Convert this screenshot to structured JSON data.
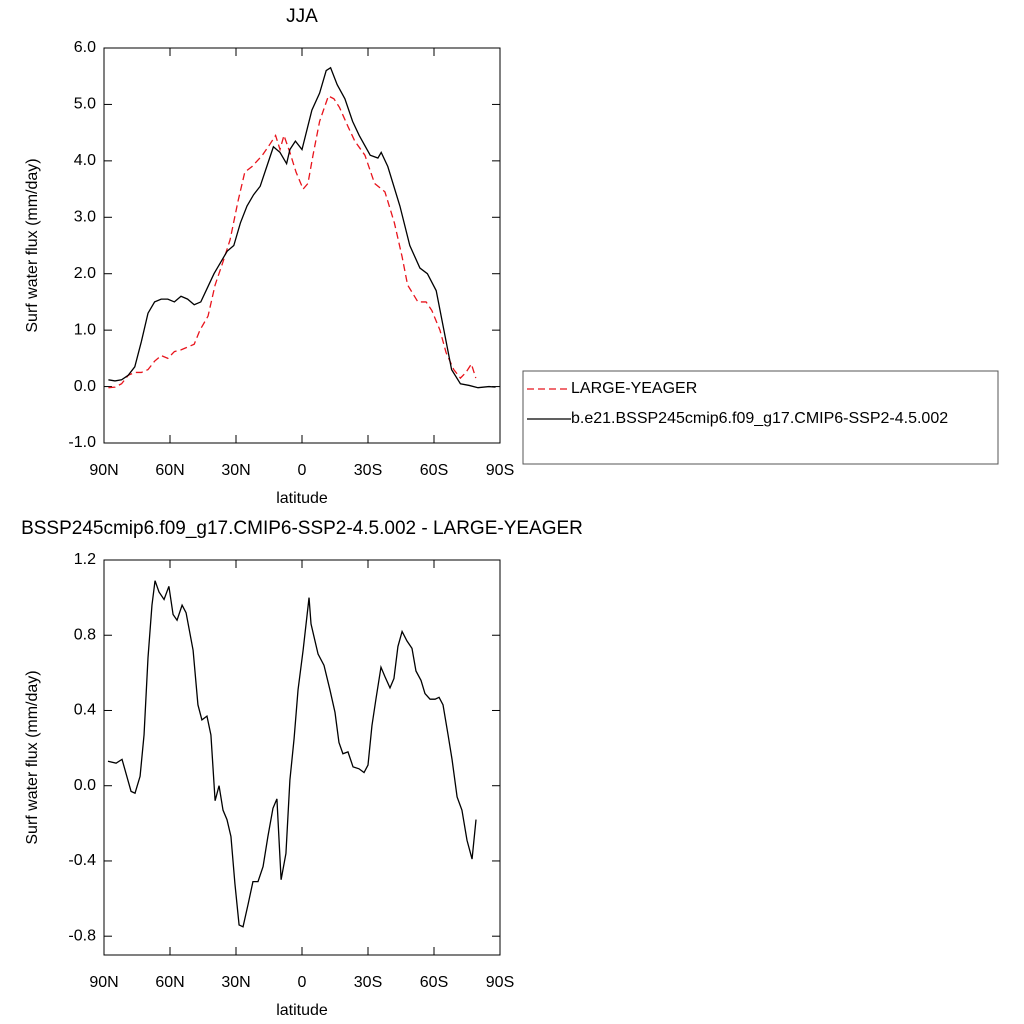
{
  "chart_data": [
    {
      "type": "line",
      "title": "JJA",
      "xlabel": "latitude",
      "ylabel": "Surf water flux (mm/day)",
      "xlim": [
        90,
        -90
      ],
      "ylim": [
        -1,
        6
      ],
      "xticks": [
        {
          "value": 90,
          "label": "90N"
        },
        {
          "value": 60,
          "label": "60N"
        },
        {
          "value": 30,
          "label": "30N"
        },
        0,
        {
          "value": -30,
          "label": "30S"
        },
        {
          "value": -60,
          "label": "60S"
        },
        {
          "value": -90,
          "label": "90S"
        }
      ],
      "yticks": [
        {
          "value": 6,
          "label": "6.0"
        },
        {
          "value": 5,
          "label": "5.0"
        },
        {
          "value": 4,
          "label": "4.0"
        },
        {
          "value": 3,
          "label": "3.0"
        },
        {
          "value": 2,
          "label": "2.0"
        },
        {
          "value": 1,
          "label": "1.0"
        },
        {
          "value": 0,
          "label": "0.0"
        },
        {
          "value": -1,
          "label": "-1.0"
        }
      ],
      "legend": "right",
      "series": [
        {
          "name": "LARGE-YEAGER",
          "color": "#e8141c",
          "linestyle": "dashed",
          "x": [
            88,
            85,
            82,
            79,
            76,
            73,
            70,
            67,
            64,
            61,
            58,
            55,
            52,
            49,
            46.4,
            42.7,
            39.5,
            36,
            32.7,
            29,
            26,
            22.7,
            18,
            14.5,
            12,
            10,
            8.2,
            5.5,
            2.7,
            -0.5,
            -2.7,
            -5,
            -8,
            -12,
            -14.5,
            -17,
            -21,
            -24,
            -28.6,
            -33,
            -37.7,
            -42,
            -45.5,
            -48,
            -52.7,
            -56.4,
            -59,
            -62.7,
            -65.5,
            -69,
            -72,
            -74.5,
            -77,
            -79
          ],
          "values": [
            -0.02,
            -0.01,
            0.05,
            0.2,
            0.25,
            0.25,
            0.3,
            0.45,
            0.55,
            0.5,
            0.62,
            0.65,
            0.7,
            0.75,
            1.0,
            1.25,
            1.8,
            2.2,
            2.6,
            3.3,
            3.8,
            3.9,
            4.1,
            4.3,
            4.45,
            4.2,
            4.45,
            4.15,
            3.8,
            3.5,
            3.6,
            4.1,
            4.7,
            5.15,
            5.1,
            4.95,
            4.6,
            4.35,
            4.1,
            3.6,
            3.45,
            2.9,
            2.3,
            1.8,
            1.5,
            1.5,
            1.35,
            1.0,
            0.6,
            0.3,
            0.15,
            0.25,
            0.4,
            0.15
          ]
        },
        {
          "name": "b.e21.BSSP245cmip6.f09_g17.CMIP6-SSP2-4.5.002",
          "color": "#000000",
          "linestyle": "solid",
          "x": [
            88,
            85,
            82,
            79,
            76,
            73,
            70,
            67,
            64,
            61,
            58,
            55,
            52,
            49,
            46,
            43,
            40,
            37,
            34,
            31,
            28,
            25,
            22,
            19,
            16,
            13,
            10,
            7,
            5.5,
            3,
            0,
            -4.5,
            -8,
            -11,
            -13,
            -16,
            -19.5,
            -23,
            -26,
            -31,
            -34.5,
            -36,
            -39,
            -44.5,
            -49,
            -53.6,
            -57,
            -61,
            -64.5,
            -68,
            -72,
            -76,
            -80,
            -85,
            -88
          ],
          "values": [
            0.12,
            0.1,
            0.12,
            0.2,
            0.35,
            0.8,
            1.3,
            1.5,
            1.55,
            1.55,
            1.5,
            1.6,
            1.55,
            1.45,
            1.5,
            1.75,
            2.0,
            2.2,
            2.4,
            2.5,
            2.9,
            3.2,
            3.4,
            3.55,
            3.9,
            4.25,
            4.15,
            3.95,
            4.2,
            4.35,
            4.2,
            4.9,
            5.2,
            5.6,
            5.65,
            5.35,
            5.1,
            4.7,
            4.45,
            4.1,
            4.05,
            4.15,
            3.9,
            3.2,
            2.5,
            2.1,
            2.0,
            1.7,
            1.0,
            0.3,
            0.05,
            0.02,
            -0.02,
            0,
            -0.01
          ]
        }
      ]
    },
    {
      "type": "line",
      "title": "BSSP245cmip6.f09_g17.CMIP6-SSP2-4.5.002 - LARGE-YEAGER",
      "xlabel": "latitude",
      "ylabel": "Surf water flux (mm/day)",
      "xlim": [
        90,
        -90
      ],
      "ylim": [
        -0.9,
        1.2
      ],
      "xticks": [
        {
          "value": 90,
          "label": "90N"
        },
        {
          "value": 60,
          "label": "60N"
        },
        {
          "value": 30,
          "label": "30N"
        },
        0,
        {
          "value": -30,
          "label": "30S"
        },
        {
          "value": -60,
          "label": "60S"
        },
        {
          "value": -90,
          "label": "90S"
        }
      ],
      "yticks": [
        1.2,
        0.8,
        0.4,
        {
          "value": 0,
          "label": "0.0"
        },
        -0.4,
        -0.8
      ],
      "series": [
        {
          "color": "#000000",
          "linestyle": "solid",
          "x": [
            88.2,
            84.5,
            81.8,
            77.7,
            75.9,
            73.6,
            71.8,
            70,
            68.2,
            66.8,
            65,
            62.7,
            60.5,
            58.6,
            56.8,
            54.5,
            52.7,
            49.5,
            47.3,
            45.5,
            43.2,
            41.4,
            39.5,
            37.7,
            35.9,
            34.1,
            32.3,
            30.5,
            28.6,
            26.8,
            24.5,
            22.3,
            20,
            17.7,
            15.5,
            13.2,
            11.4,
            9.5,
            7.3,
            5.5,
            3.6,
            1.8,
            -0.5,
            -3.2,
            -4.1,
            -7.3,
            -10,
            -12.7,
            -15,
            -16.8,
            -18.6,
            -20.9,
            -23.2,
            -25.9,
            -28.2,
            -30,
            -31.8,
            -33.6,
            -35.9,
            -37.7,
            -40,
            -41.8,
            -43.6,
            -45.5,
            -47.7,
            -50,
            -51.8,
            -54.1,
            -55.9,
            -58.2,
            -60.5,
            -62.3,
            -64.1,
            -66.4,
            -68.2,
            -70.5,
            -72.7,
            -75,
            -77.3,
            -79.1
          ],
          "values": [
            0.13,
            0.12,
            0.14,
            -0.03,
            -0.04,
            0.05,
            0.27,
            0.68,
            0.96,
            1.09,
            1.03,
            0.99,
            1.06,
            0.91,
            0.88,
            0.96,
            0.92,
            0.72,
            0.43,
            0.35,
            0.37,
            0.27,
            -0.08,
            0.0,
            -0.13,
            -0.18,
            -0.27,
            -0.52,
            -0.74,
            -0.75,
            -0.63,
            -0.51,
            -0.51,
            -0.43,
            -0.27,
            -0.12,
            -0.07,
            -0.5,
            -0.36,
            0.03,
            0.25,
            0.51,
            0.72,
            1.0,
            0.86,
            0.7,
            0.64,
            0.51,
            0.39,
            0.23,
            0.17,
            0.18,
            0.1,
            0.09,
            0.07,
            0.11,
            0.32,
            0.46,
            0.63,
            0.58,
            0.52,
            0.57,
            0.74,
            0.82,
            0.77,
            0.73,
            0.61,
            0.56,
            0.49,
            0.46,
            0.46,
            0.47,
            0.43,
            0.27,
            0.14,
            -0.06,
            -0.13,
            -0.29,
            -0.39,
            -0.18
          ]
        }
      ]
    }
  ]
}
